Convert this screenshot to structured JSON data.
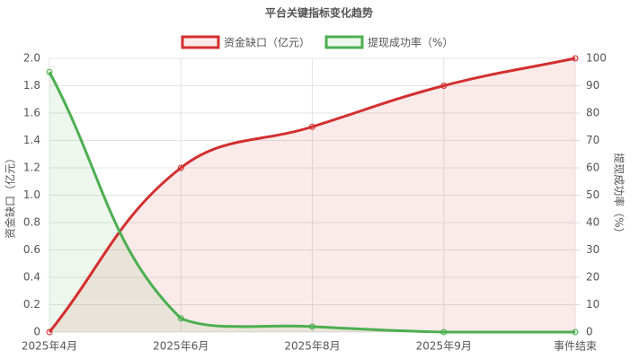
{
  "chart_data": {
    "type": "line",
    "title": "平台关键指标变化趋势",
    "categories": [
      "2025年4月",
      "2025年6月",
      "2025年8月",
      "2025年9月",
      "事件结束"
    ],
    "series": [
      {
        "name": "资金缺口（亿元）",
        "color": "#d32f2f",
        "fill": "rgba(211,47,47,0.1)",
        "values": [
          0,
          1.2,
          1.5,
          1.8,
          2.0
        ]
      },
      {
        "name": "提现成功率（%）",
        "color": "#4caf50",
        "fill": "rgba(76,175,80,0.1)",
        "values": [
          95,
          5,
          2,
          0,
          0
        ],
        "axis": "y2"
      }
    ],
    "ylabel": "资金缺口（亿元）",
    "y2label": "提现成功率（%）",
    "ylim": [
      0,
      2.0
    ],
    "yticks": [
      0,
      0.2,
      0.4,
      0.6,
      0.8,
      {
        "value": 1.0,
        "label": "1.0"
      },
      1.2,
      1.4,
      1.6,
      1.8,
      {
        "value": 2.0,
        "label": "2.0"
      }
    ],
    "y2lim": [
      0,
      100
    ],
    "y2ticks": [
      0,
      10,
      20,
      30,
      40,
      50,
      60,
      70,
      80,
      90,
      100
    ],
    "grid": true,
    "legend": "top"
  }
}
